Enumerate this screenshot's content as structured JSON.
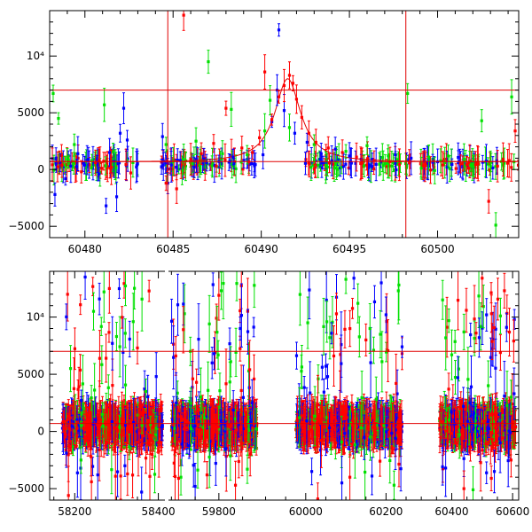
{
  "chart_data": [
    {
      "type": "scatter",
      "title": "",
      "xlabel": "",
      "ylabel": "",
      "xlim": [
        60478,
        60504.6
      ],
      "ylim": [
        -6000,
        14000
      ],
      "x_ticks": [
        60480,
        60485,
        60490,
        60495,
        60500
      ],
      "x_tick_labels": [
        "60480",
        "60485",
        "60490",
        "60495",
        "60500"
      ],
      "y_ticks": [
        -5000,
        0,
        5000,
        10000
      ],
      "y_tick_labels": [
        "−5000",
        "0",
        "5000",
        "10⁴"
      ],
      "hlines": [
        700,
        7000
      ],
      "vlines": [
        60484.7,
        60498.2
      ],
      "line_color": "#e00000",
      "series": [
        {
          "color": "#0000ff",
          "points": [
            [
              60478.3,
              -2200
            ],
            [
              60478.6,
              600
            ],
            [
              60478.9,
              -800
            ],
            [
              60479.2,
              300
            ],
            [
              60479.6,
              1400
            ],
            [
              60480.2,
              900
            ],
            [
              60480.8,
              -400
            ],
            [
              60481.2,
              -3200
            ],
            [
              60481.4,
              1500
            ],
            [
              60481.8,
              -2400
            ],
            [
              60482.0,
              3200
            ],
            [
              60482.2,
              5400
            ],
            [
              60482.4,
              2600
            ],
            [
              60484.4,
              2900
            ],
            [
              60484.7,
              -1200
            ],
            [
              60484.9,
              400
            ],
            [
              60485.4,
              800
            ],
            [
              60486.2,
              200
            ],
            [
              60486.9,
              600
            ],
            [
              60487.6,
              700
            ],
            [
              60488.4,
              1100
            ],
            [
              60489.2,
              900
            ],
            [
              60490.1,
              1300
            ],
            [
              60490.6,
              4200
            ],
            [
              60490.9,
              7000
            ],
            [
              60491.0,
              12300
            ],
            [
              60491.3,
              5200
            ],
            [
              60491.9,
              3200
            ],
            [
              60492.6,
              2400
            ],
            [
              60493.4,
              1400
            ],
            [
              60494.2,
              1800
            ],
            [
              60495.0,
              1200
            ],
            [
              60496.3,
              900
            ],
            [
              60497.6,
              1300
            ],
            [
              60498.5,
              1000
            ]
          ]
        },
        {
          "color": "#00e000",
          "points": [
            [
              60478.2,
              6700
            ],
            [
              60478.5,
              4500
            ],
            [
              60479.0,
              1000
            ],
            [
              60479.4,
              2200
            ],
            [
              60480.4,
              800
            ],
            [
              60481.1,
              5700
            ],
            [
              60481.6,
              1600
            ],
            [
              60484.6,
              2200
            ],
            [
              60485.6,
              900
            ],
            [
              60486.3,
              2500
            ],
            [
              60487.0,
              9500
            ],
            [
              60487.8,
              1400
            ],
            [
              60488.3,
              5300
            ],
            [
              60489.2,
              1300
            ],
            [
              60490.2,
              3400
            ],
            [
              60490.5,
              6100
            ],
            [
              60491.6,
              3700
            ],
            [
              60493.0,
              2200
            ],
            [
              60494.8,
              1600
            ],
            [
              60496.0,
              2100
            ],
            [
              60497.2,
              1200
            ],
            [
              60498.3,
              6700
            ],
            [
              60499.5,
              1100
            ],
            [
              60500.6,
              1200
            ],
            [
              60501.5,
              900
            ],
            [
              60502.5,
              4300
            ],
            [
              60503.0,
              300
            ],
            [
              60503.3,
              -4900
            ],
            [
              60504.2,
              6400
            ]
          ]
        },
        {
          "color": "#ff0000",
          "points": [
            [
              60478.7,
              400
            ],
            [
              60479.8,
              -200
            ],
            [
              60480.6,
              600
            ],
            [
              60481.5,
              200
            ],
            [
              60482.6,
              -300
            ],
            [
              60484.6,
              -1200
            ],
            [
              60485.2,
              -1700
            ],
            [
              60485.6,
              13600
            ],
            [
              60486.0,
              900
            ],
            [
              60486.6,
              1400
            ],
            [
              60487.3,
              2300
            ],
            [
              60488.0,
              5400
            ],
            [
              60488.9,
              1900
            ],
            [
              60489.5,
              1500
            ],
            [
              60489.9,
              2800
            ],
            [
              60490.2,
              8600
            ],
            [
              60490.6,
              4400
            ],
            [
              60491.0,
              6400
            ],
            [
              60491.3,
              7400
            ],
            [
              60491.6,
              8300
            ],
            [
              60491.8,
              7600
            ],
            [
              60492.0,
              6200
            ],
            [
              60492.3,
              4600
            ],
            [
              60492.7,
              3200
            ],
            [
              60493.1,
              2400
            ],
            [
              60493.8,
              1900
            ],
            [
              60494.6,
              1500
            ],
            [
              60495.4,
              1100
            ],
            [
              60496.4,
              800
            ],
            [
              60497.3,
              700
            ],
            [
              60498.4,
              600
            ],
            [
              60499.3,
              500
            ],
            [
              60500.3,
              400
            ],
            [
              60501.3,
              500
            ],
            [
              60502.3,
              500
            ],
            [
              60502.9,
              -2800
            ],
            [
              60503.4,
              300
            ],
            [
              60504.4,
              3400
            ]
          ]
        }
      ]
    },
    {
      "type": "scatter",
      "title": "",
      "xlabel": "",
      "ylabel": "",
      "ylim": [
        -6000,
        14000
      ],
      "panels": [
        {
          "xlim": [
            58140,
            58420
          ],
          "x_ticks": [
            58200,
            58400
          ],
          "x_tick_labels": [
            "58200",
            "58400"
          ]
        },
        {
          "xlim": [
            59690,
            59890
          ],
          "x_ticks": [
            59800
          ],
          "x_tick_labels": [
            "59800"
          ]
        },
        {
          "xlim": [
            59890,
            60250
          ],
          "x_ticks": [
            60000,
            60200
          ],
          "x_tick_labels": [
            "60000",
            "60200"
          ]
        },
        {
          "xlim": [
            60250,
            60620
          ],
          "x_ticks": [
            60400,
            60600
          ],
          "x_tick_labels": [
            "60400",
            "60600"
          ]
        }
      ],
      "y_ticks": [
        -5000,
        0,
        5000,
        10000
      ],
      "y_tick_labels": [
        "−5000",
        "0",
        "5000",
        "10⁴"
      ],
      "hlines": [
        700,
        7000
      ],
      "line_color": "#e00000",
      "seasons": [
        [
          58170,
          58410
        ],
        [
          59700,
          59880
        ],
        [
          59975,
          60240
        ],
        [
          60360,
          60610
        ]
      ],
      "series": [
        {
          "color": "#00e000",
          "points": [
            [
              58190,
              5500
            ],
            [
              58215,
              -2500
            ],
            [
              58245,
              10500
            ],
            [
              58270,
              12200
            ],
            [
              58300,
              8300
            ],
            [
              58340,
              9600
            ],
            [
              58370,
              3500
            ],
            [
              59720,
              -4000
            ],
            [
              59740,
              7000
            ],
            [
              59780,
              9400
            ],
            [
              59805,
              12300
            ],
            [
              59825,
              6100
            ],
            [
              59860,
              -3300
            ],
            [
              60005,
              9500
            ],
            [
              60060,
              8200
            ],
            [
              60100,
              13300
            ],
            [
              60130,
              11200
            ],
            [
              60160,
              9000
            ],
            [
              60190,
              6100
            ],
            [
              60220,
              -4700
            ],
            [
              60370,
              11500
            ],
            [
              60400,
              6700
            ],
            [
              60440,
              8700
            ],
            [
              60470,
              -5100
            ],
            [
              60520,
              4000
            ],
            [
              60560,
              10100
            ],
            [
              60595,
              3000
            ]
          ]
        },
        {
          "color": "#0000ff",
          "points": [
            [
              58180,
              -1900
            ],
            [
              58225,
              13500
            ],
            [
              58255,
              -3800
            ],
            [
              58290,
              7700
            ],
            [
              58320,
              -3000
            ],
            [
              58360,
              -5300
            ],
            [
              58395,
              4800
            ],
            [
              59710,
              2500
            ],
            [
              59750,
              -4800
            ],
            [
              59790,
              6800
            ],
            [
              59815,
              -1500
            ],
            [
              59845,
              9000
            ],
            [
              59870,
              2500
            ],
            [
              60015,
              -3500
            ],
            [
              60050,
              5700
            ],
            [
              60090,
              -4500
            ],
            [
              60120,
              13400
            ],
            [
              60165,
              -3900
            ],
            [
              60200,
              10200
            ],
            [
              60240,
              7400
            ],
            [
              60380,
              -3200
            ],
            [
              60420,
              4700
            ],
            [
              60460,
              2500
            ],
            [
              60490,
              8200
            ],
            [
              60540,
              -3500
            ],
            [
              60580,
              9100
            ],
            [
              60605,
              3300
            ]
          ]
        },
        {
          "color": "#ff0000",
          "points": [
            [
              58185,
              -5600
            ],
            [
              58210,
              3900
            ],
            [
              58240,
              -4400
            ],
            [
              58275,
              6400
            ],
            [
              58310,
              -3900
            ],
            [
              58350,
              7300
            ],
            [
              58385,
              -2000
            ],
            [
              59715,
              -4100
            ],
            [
              59745,
              4600
            ],
            [
              59775,
              -3800
            ],
            [
              59800,
              11900
            ],
            [
              59835,
              -4700
            ],
            [
              59865,
              5400
            ],
            [
              60030,
              -5900
            ],
            [
              60070,
              6600
            ],
            [
              60110,
              -4000
            ],
            [
              60150,
              8000
            ],
            [
              60185,
              -2600
            ],
            [
              60225,
              4200
            ],
            [
              60390,
              3700
            ],
            [
              60440,
              -5000
            ],
            [
              60480,
              8600
            ],
            [
              60500,
              13400
            ],
            [
              60530,
              -4100
            ],
            [
              60560,
              6900
            ],
            [
              60595,
              -2500
            ]
          ]
        }
      ]
    }
  ]
}
